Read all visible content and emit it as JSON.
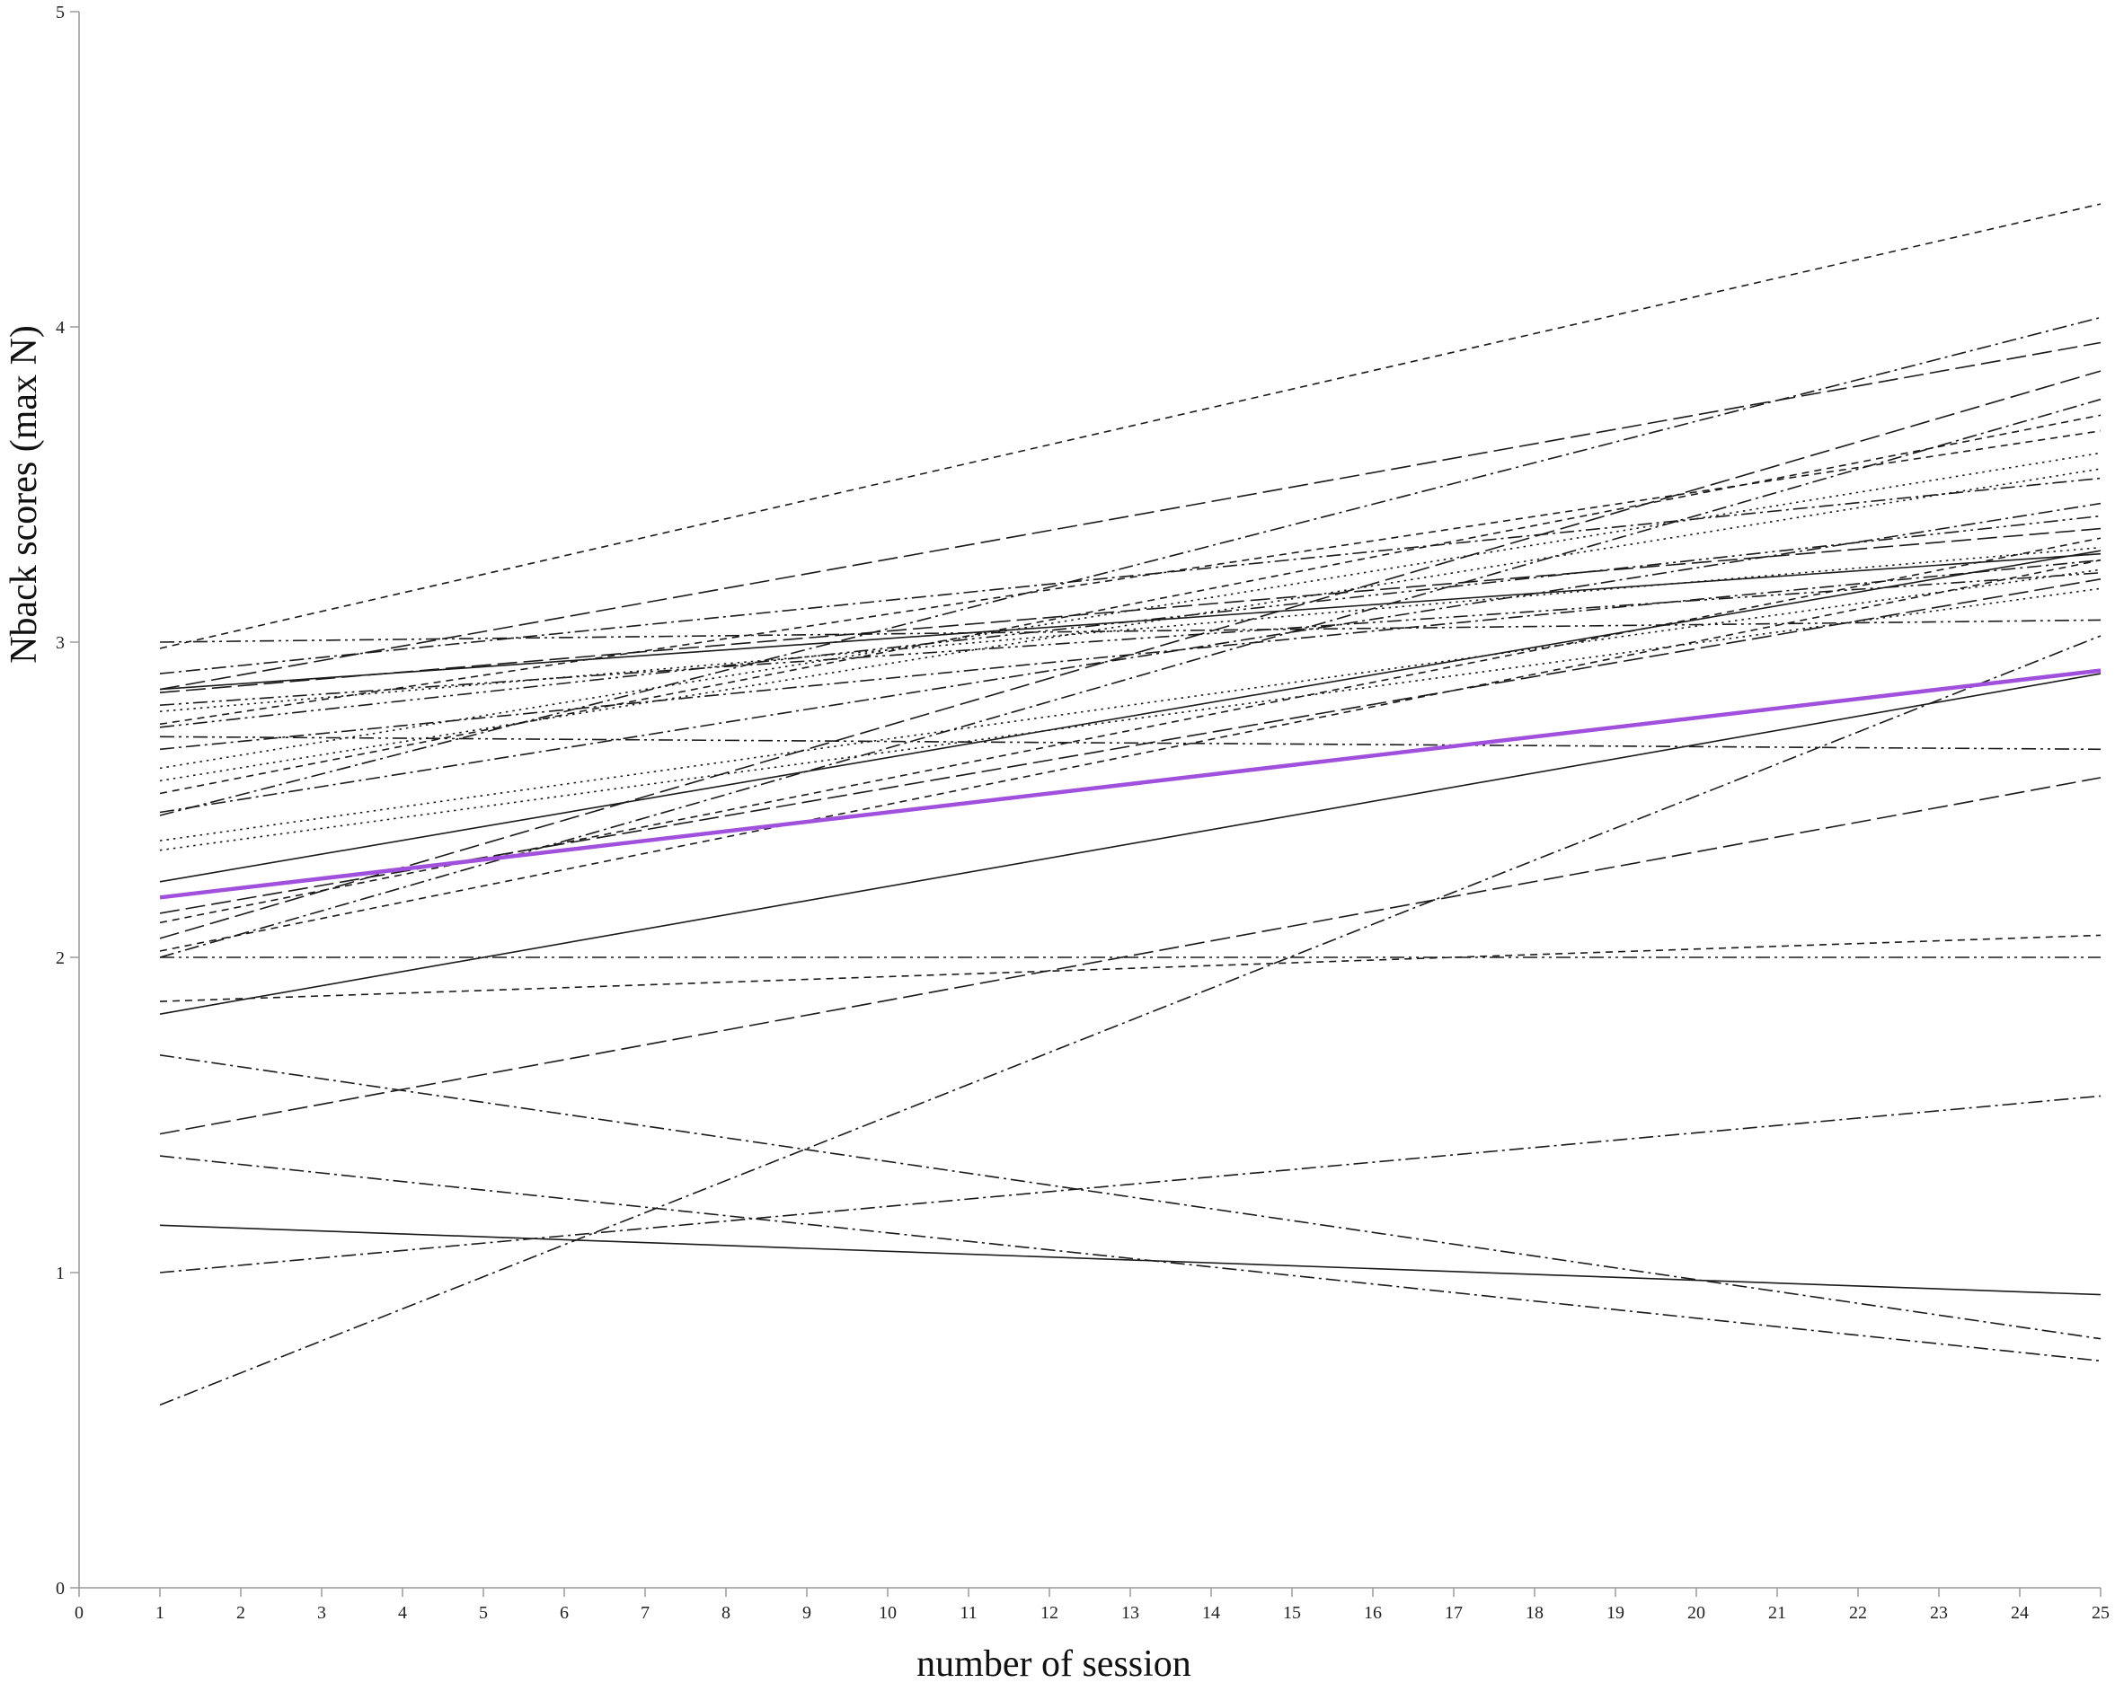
{
  "chart_data": {
    "type": "line",
    "title": "",
    "xlabel": "number of session",
    "ylabel": "Nback scores (max N)",
    "xlim": [
      0,
      25
    ],
    "ylim": [
      0,
      5
    ],
    "xticks": [
      "0",
      "1",
      "2",
      "3",
      "4",
      "5",
      "6",
      "7",
      "8",
      "9",
      "10",
      "11",
      "12",
      "13",
      "14",
      "15",
      "16",
      "17",
      "18",
      "19",
      "20",
      "21",
      "22",
      "23",
      "24",
      "25"
    ],
    "yticks": [
      "0",
      "1",
      "2",
      "3",
      "4",
      "5"
    ],
    "grid": false,
    "legend": "none",
    "highlight_color": "#a050dc",
    "line_color": "#1a1a1a",
    "highlight": {
      "x": [
        1,
        25
      ],
      "y": [
        2.19,
        2.91
      ]
    },
    "series": [
      {
        "x": [
          1,
          25
        ],
        "y": [
          2.98,
          4.39
        ],
        "style": "dashed"
      },
      {
        "x": [
          1,
          25
        ],
        "y": [
          2.45,
          4.03
        ],
        "style": "dashdot"
      },
      {
        "x": [
          1,
          25
        ],
        "y": [
          2.85,
          3.95
        ],
        "style": "longdash"
      },
      {
        "x": [
          1,
          25
        ],
        "y": [
          2.06,
          3.86
        ],
        "style": "longdash"
      },
      {
        "x": [
          1,
          25
        ],
        "y": [
          2.0,
          3.77
        ],
        "style": "dashdot"
      },
      {
        "x": [
          1,
          25
        ],
        "y": [
          2.52,
          3.72
        ],
        "style": "dashed"
      },
      {
        "x": [
          1,
          25
        ],
        "y": [
          2.74,
          3.67
        ],
        "style": "dashed"
      },
      {
        "x": [
          1,
          25
        ],
        "y": [
          2.6,
          3.6
        ],
        "style": "dotted"
      },
      {
        "x": [
          1,
          25
        ],
        "y": [
          2.56,
          3.55
        ],
        "style": "dotted"
      },
      {
        "x": [
          1,
          25
        ],
        "y": [
          2.9,
          3.52
        ],
        "style": "dashdot"
      },
      {
        "x": [
          1,
          25
        ],
        "y": [
          2.46,
          3.44
        ],
        "style": "dashdot"
      },
      {
        "x": [
          1,
          25
        ],
        "y": [
          2.73,
          3.4
        ],
        "style": "dashdotdot"
      },
      {
        "x": [
          1,
          25
        ],
        "y": [
          2.84,
          3.36
        ],
        "style": "longdash"
      },
      {
        "x": [
          1,
          25
        ],
        "y": [
          2.11,
          3.33
        ],
        "style": "dashed"
      },
      {
        "x": [
          1,
          25
        ],
        "y": [
          2.78,
          3.3
        ],
        "style": "dotted"
      },
      {
        "x": [
          1,
          25
        ],
        "y": [
          2.85,
          3.28
        ],
        "style": "solid"
      },
      {
        "x": [
          1,
          25
        ],
        "y": [
          2.24,
          3.29
        ],
        "style": "solid"
      },
      {
        "x": [
          1,
          25
        ],
        "y": [
          2.66,
          3.26
        ],
        "style": "dashdot"
      },
      {
        "x": [
          1,
          25
        ],
        "y": [
          2.37,
          3.23
        ],
        "style": "dotted"
      },
      {
        "x": [
          1,
          25
        ],
        "y": [
          2.8,
          3.22
        ],
        "style": "dashdotdot"
      },
      {
        "x": [
          1,
          25
        ],
        "y": [
          2.14,
          3.2
        ],
        "style": "longdash"
      },
      {
        "x": [
          1,
          25
        ],
        "y": [
          2.34,
          3.17
        ],
        "style": "dotted"
      },
      {
        "x": [
          1,
          25
        ],
        "y": [
          2.02,
          3.26
        ],
        "style": "dashed"
      },
      {
        "x": [
          1,
          25
        ],
        "y": [
          3.0,
          3.07
        ],
        "style": "dashdotdot"
      },
      {
        "x": [
          1,
          25
        ],
        "y": [
          0.58,
          3.02
        ],
        "style": "dashdot"
      },
      {
        "x": [
          1,
          25
        ],
        "y": [
          1.82,
          2.9
        ],
        "style": "solid"
      },
      {
        "x": [
          1,
          25
        ],
        "y": [
          2.7,
          2.66
        ],
        "style": "dashdotdot"
      },
      {
        "x": [
          1,
          25
        ],
        "y": [
          1.44,
          2.57
        ],
        "style": "longdash"
      },
      {
        "x": [
          1,
          25
        ],
        "y": [
          1.86,
          2.07
        ],
        "style": "dashed"
      },
      {
        "x": [
          1,
          25
        ],
        "y": [
          2.0,
          2.0
        ],
        "style": "dashdotdot"
      },
      {
        "x": [
          1,
          25
        ],
        "y": [
          1.0,
          1.56
        ],
        "style": "dashdot"
      },
      {
        "x": [
          1,
          25
        ],
        "y": [
          1.15,
          0.93
        ],
        "style": "solid"
      },
      {
        "x": [
          1,
          25
        ],
        "y": [
          1.69,
          0.79
        ],
        "style": "dashdot"
      },
      {
        "x": [
          1,
          25
        ],
        "y": [
          1.37,
          0.72
        ],
        "style": "dashdot"
      }
    ]
  }
}
